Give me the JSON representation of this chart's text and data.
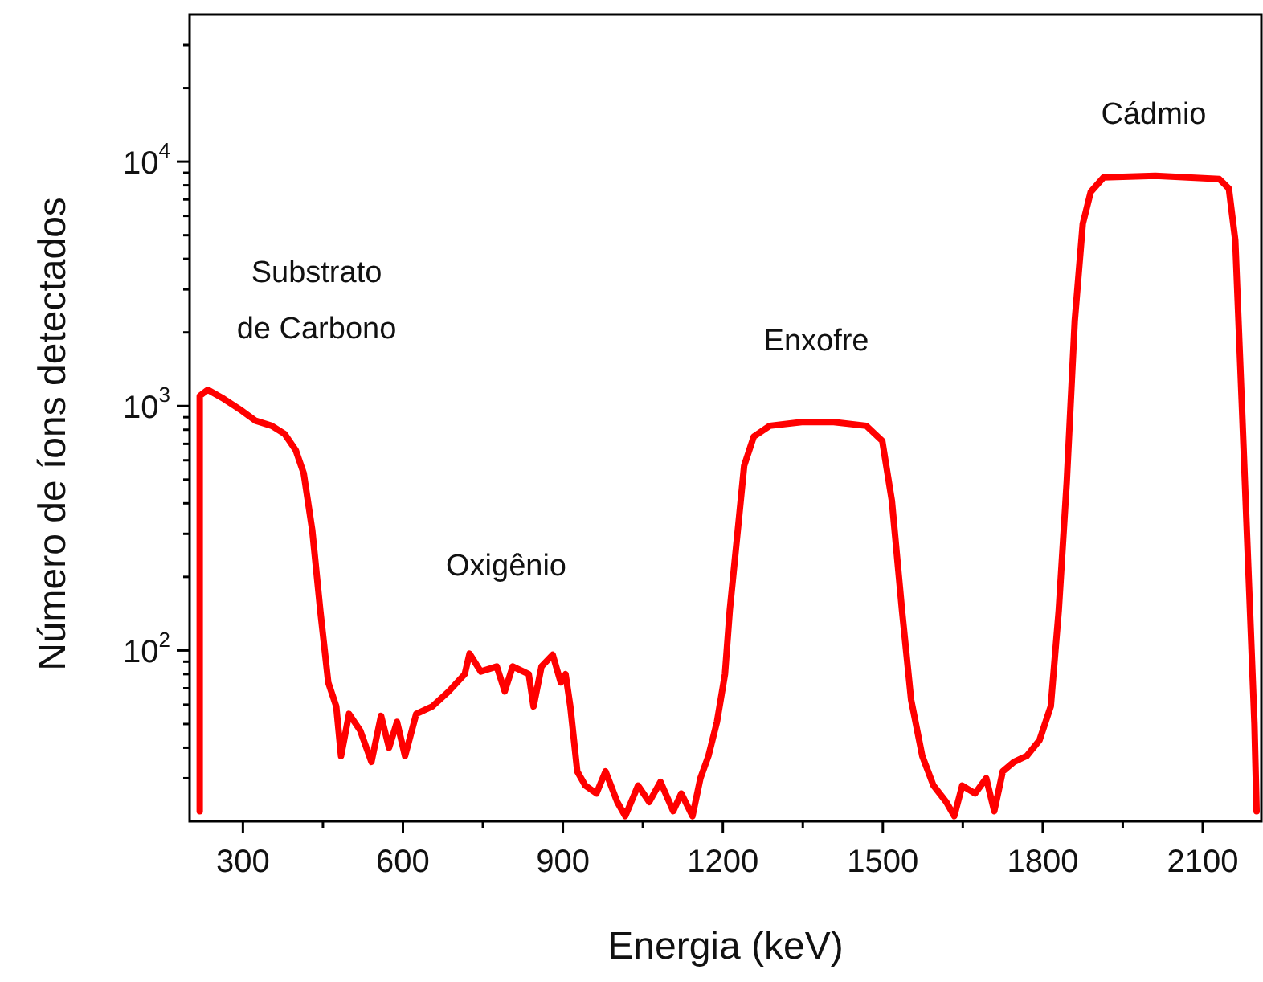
{
  "chart_data": {
    "type": "line",
    "xlabel": "Energia (keV)",
    "ylabel": "Número de íons detectados",
    "log": "y",
    "grid": false,
    "legend": false,
    "marker": "none",
    "line_style": "solid",
    "xlim": [
      200,
      2210
    ],
    "ylim": [
      20,
      40000
    ],
    "xticks": [
      300,
      {
        "value": 450,
        "label": null
      },
      600,
      {
        "value": 750,
        "label": null
      },
      900,
      {
        "value": 1050,
        "label": null
      },
      1200,
      {
        "value": 1350,
        "label": null
      },
      1500,
      {
        "value": 1650,
        "label": null
      },
      1800,
      {
        "value": 1950,
        "label": null
      },
      2100
    ],
    "yticks": [
      {
        "value": 30,
        "label": null
      },
      {
        "value": 40,
        "label": null
      },
      {
        "value": 50,
        "label": null
      },
      {
        "value": 60,
        "label": null
      },
      {
        "value": 70,
        "label": null
      },
      {
        "value": 80,
        "label": null
      },
      {
        "value": 90,
        "label": null
      },
      {
        "value": 100,
        "label": "10$^{2}$"
      },
      {
        "value": 200,
        "label": null
      },
      {
        "value": 300,
        "label": null
      },
      {
        "value": 400,
        "label": null
      },
      {
        "value": 500,
        "label": null
      },
      {
        "value": 600,
        "label": null
      },
      {
        "value": 700,
        "label": null
      },
      {
        "value": 800,
        "label": null
      },
      {
        "value": 900,
        "label": null
      },
      {
        "value": 1000,
        "label": "10$^{3}$"
      },
      {
        "value": 2000,
        "label": null
      },
      {
        "value": 3000,
        "label": null
      },
      {
        "value": 4000,
        "label": null
      },
      {
        "value": 5000,
        "label": null
      },
      {
        "value": 6000,
        "label": null
      },
      {
        "value": 7000,
        "label": null
      },
      {
        "value": 8000,
        "label": null
      },
      {
        "value": 9000,
        "label": null
      },
      {
        "value": 10000,
        "label": "10$^{4}$"
      },
      {
        "value": 20000,
        "label": null
      },
      {
        "value": 30000,
        "label": null
      }
    ],
    "annotations": [
      "Substrato\nde Carbono",
      "Oxigênio",
      "Enxofre",
      "Cádmio"
    ],
    "series": [
      {
        "color": "#ff0000",
        "x": [
          219,
          219,
          234,
          264,
          294,
          324,
          354,
          378,
          399,
          414,
          430,
          445,
          460,
          475,
          484,
          499,
          520,
          541,
          559,
          574,
          589,
          604,
          625,
          655,
          686,
          716,
          725,
          746,
          776,
          791,
          806,
          836,
          845,
          860,
          881,
          896,
          905,
          914,
          927,
          942,
          963,
          980,
          1002,
          1017,
          1041,
          1062,
          1083,
          1107,
          1122,
          1143,
          1158,
          1173,
          1189,
          1204,
          1213,
          1228,
          1240,
          1258,
          1288,
          1348,
          1408,
          1469,
          1499,
          1517,
          1536,
          1553,
          1574,
          1595,
          1619,
          1634,
          1649,
          1673,
          1694,
          1709,
          1725,
          1746,
          1770,
          1794,
          1815,
          1830,
          1845,
          1860,
          1875,
          1890,
          1914,
          2011,
          2131,
          2149,
          2161,
          2173,
          2185,
          2197,
          2201
        ],
        "values": [
          22,
          1100,
          1165,
          1070,
          970,
          870,
          830,
          770,
          660,
          530,
          310,
          146,
          74,
          59,
          37,
          55,
          47,
          35,
          54,
          40,
          51,
          37,
          55,
          59,
          68,
          80,
          97,
          82,
          86,
          68,
          86,
          80,
          59,
          86,
          96,
          74,
          80,
          59,
          32,
          28,
          26,
          32,
          24,
          21,
          28,
          24,
          29,
          22,
          26,
          21,
          30,
          37,
          51,
          80,
          146,
          310,
          570,
          750,
          830,
          860,
          860,
          830,
          720,
          410,
          146,
          63,
          37,
          28,
          24,
          21,
          28,
          26,
          30,
          22,
          32,
          35,
          37,
          43,
          59,
          146,
          490,
          2230,
          5560,
          7520,
          8620,
          8750,
          8490,
          7760,
          4770,
          1060,
          230,
          50,
          22
        ]
      }
    ]
  }
}
